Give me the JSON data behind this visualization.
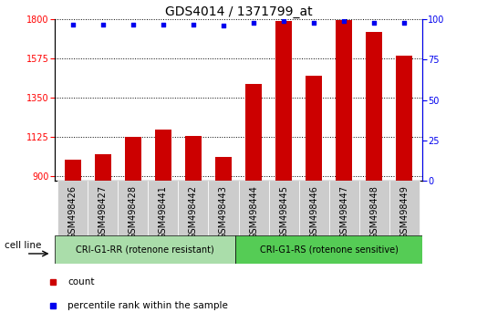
{
  "title": "GDS4014 / 1371799_at",
  "categories": [
    "GSM498426",
    "GSM498427",
    "GSM498428",
    "GSM498441",
    "GSM498442",
    "GSM498443",
    "GSM498444",
    "GSM498445",
    "GSM498446",
    "GSM498447",
    "GSM498448",
    "GSM498449"
  ],
  "bar_values": [
    990,
    1025,
    1125,
    1165,
    1130,
    1010,
    1430,
    1790,
    1475,
    1795,
    1730,
    1590
  ],
  "percentile_values": [
    97,
    97,
    97,
    97,
    97,
    96,
    98,
    99,
    98,
    99,
    98,
    98
  ],
  "ylim_left": [
    870,
    1800
  ],
  "ylim_right": [
    0,
    100
  ],
  "yticks_left": [
    900,
    1125,
    1350,
    1575,
    1800
  ],
  "yticks_right": [
    0,
    25,
    50,
    75,
    100
  ],
  "bar_color": "#cc0000",
  "dot_color": "#0000ee",
  "grid_color": "#000000",
  "bg_color": "#ffffff",
  "group1_label": "CRI-G1-RR (rotenone resistant)",
  "group2_label": "CRI-G1-RS (rotenone sensitive)",
  "group1_color": "#aaddaa",
  "group2_color": "#55cc55",
  "group1_count": 6,
  "group2_count": 6,
  "cell_line_label": "cell line",
  "legend_count_label": "count",
  "legend_pct_label": "percentile rank within the sample",
  "title_fontsize": 10,
  "tick_fontsize": 7,
  "label_fontsize": 7.5,
  "xtick_label_bg": "#cccccc",
  "right_axis_color": "#0000ee"
}
